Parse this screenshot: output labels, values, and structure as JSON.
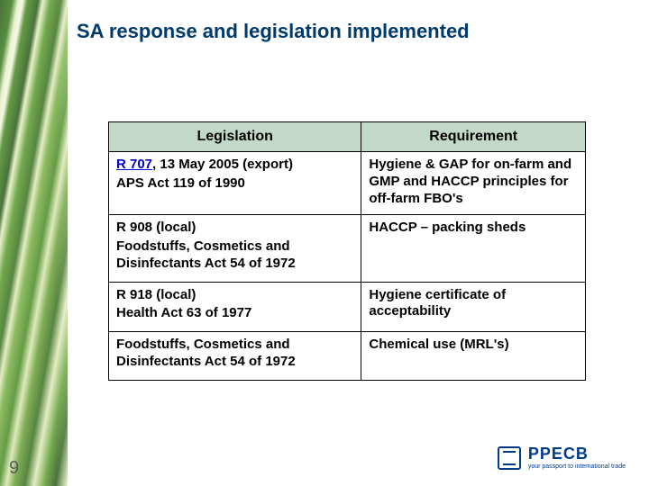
{
  "slide": {
    "title": "SA response and legislation implemented",
    "title_fontsize": 22,
    "title_color": "#003a6a",
    "page_number": "9",
    "page_number_fontsize": 20,
    "page_number_color": "#5a5a5a",
    "background_color": "#ffffff"
  },
  "table": {
    "type": "table",
    "header_background": "#c2d8c8",
    "header_fontsize": 16,
    "cell_fontsize": 15,
    "border_color": "#000000",
    "columns": [
      {
        "label": "Legislation",
        "width_pct": 53
      },
      {
        "label": "Requirement",
        "width_pct": 47
      }
    ],
    "rows": [
      {
        "legislation": {
          "link_text": "R 707",
          "rest_line1": ", 13 May 2005 (export)",
          "line2": "APS Act 119 of 1990"
        },
        "requirement": "Hygiene & GAP for on-farm and GMP and HACCP principles for off-farm FBO's"
      },
      {
        "legislation": {
          "line1": "R 908 (local)",
          "line2": "Foodstuffs, Cosmetics and Disinfectants Act 54 of 1972"
        },
        "requirement": "HACCP – packing sheds"
      },
      {
        "legislation": {
          "line1": "R 918 (local)",
          "line2": "Health Act 63 of 1977"
        },
        "requirement": "Hygiene certificate of acceptability"
      },
      {
        "legislation": {
          "line1": "Foodstuffs, Cosmetics and Disinfectants Act 54 of 1972"
        },
        "requirement": "Chemical use (MRL's)"
      }
    ]
  },
  "footer": {
    "logo_name": "PPECB",
    "logo_name_fontsize": 18,
    "logo_tagline": "your passport to international trade",
    "logo_tagline_fontsize": 7,
    "logo_color": "#003a8a"
  }
}
